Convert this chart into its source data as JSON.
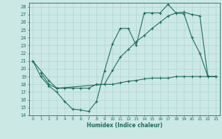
{
  "xlabel": "Humidex (Indice chaleur)",
  "bg_color": "#cce8e5",
  "line_color": "#1a6b5a",
  "grid_color": "#b0d8d4",
  "xlim": [
    -0.5,
    23.5
  ],
  "ylim": [
    14,
    28.5
  ],
  "yticks": [
    14,
    15,
    16,
    17,
    18,
    19,
    20,
    21,
    22,
    23,
    24,
    25,
    26,
    27,
    28
  ],
  "xticks": [
    0,
    1,
    2,
    3,
    4,
    5,
    6,
    7,
    8,
    9,
    10,
    11,
    12,
    13,
    14,
    15,
    16,
    17,
    18,
    19,
    20,
    21,
    22,
    23
  ],
  "line1_x": [
    0,
    1,
    2,
    3,
    4,
    5,
    6,
    7,
    8,
    9,
    10,
    11,
    12,
    13,
    14,
    15,
    16,
    17,
    18,
    19,
    20,
    21,
    22,
    23
  ],
  "line1_y": [
    21,
    19,
    17.8,
    17,
    15.8,
    14.8,
    14.7,
    14.5,
    15.8,
    19.7,
    23.2,
    25.2,
    25.2,
    23.0,
    27.2,
    27.2,
    27.2,
    28.3,
    27.2,
    27.1,
    24.0,
    22.0,
    19.0,
    19.0
  ],
  "line2_x": [
    0,
    2,
    3,
    9,
    10,
    11,
    12,
    13,
    14,
    15,
    16,
    17,
    18,
    19,
    20,
    21,
    22,
    23
  ],
  "line2_y": [
    21,
    18.5,
    17.5,
    18.0,
    19.8,
    21.5,
    22.5,
    23.5,
    24.3,
    25.2,
    26.0,
    26.8,
    27.2,
    27.3,
    27.0,
    26.8,
    19.0,
    19.0
  ],
  "line3_x": [
    1,
    2,
    3,
    4,
    5,
    6,
    7,
    8,
    9,
    10,
    11,
    12,
    13,
    14,
    15,
    16,
    17,
    18,
    19,
    20,
    21,
    22,
    23
  ],
  "line3_y": [
    19.5,
    18.0,
    17.5,
    17.5,
    17.5,
    17.5,
    17.5,
    18.0,
    18.0,
    18.0,
    18.2,
    18.4,
    18.5,
    18.7,
    18.8,
    18.8,
    18.8,
    19.0,
    19.0,
    19.0,
    19.0,
    19.0,
    19.0
  ]
}
